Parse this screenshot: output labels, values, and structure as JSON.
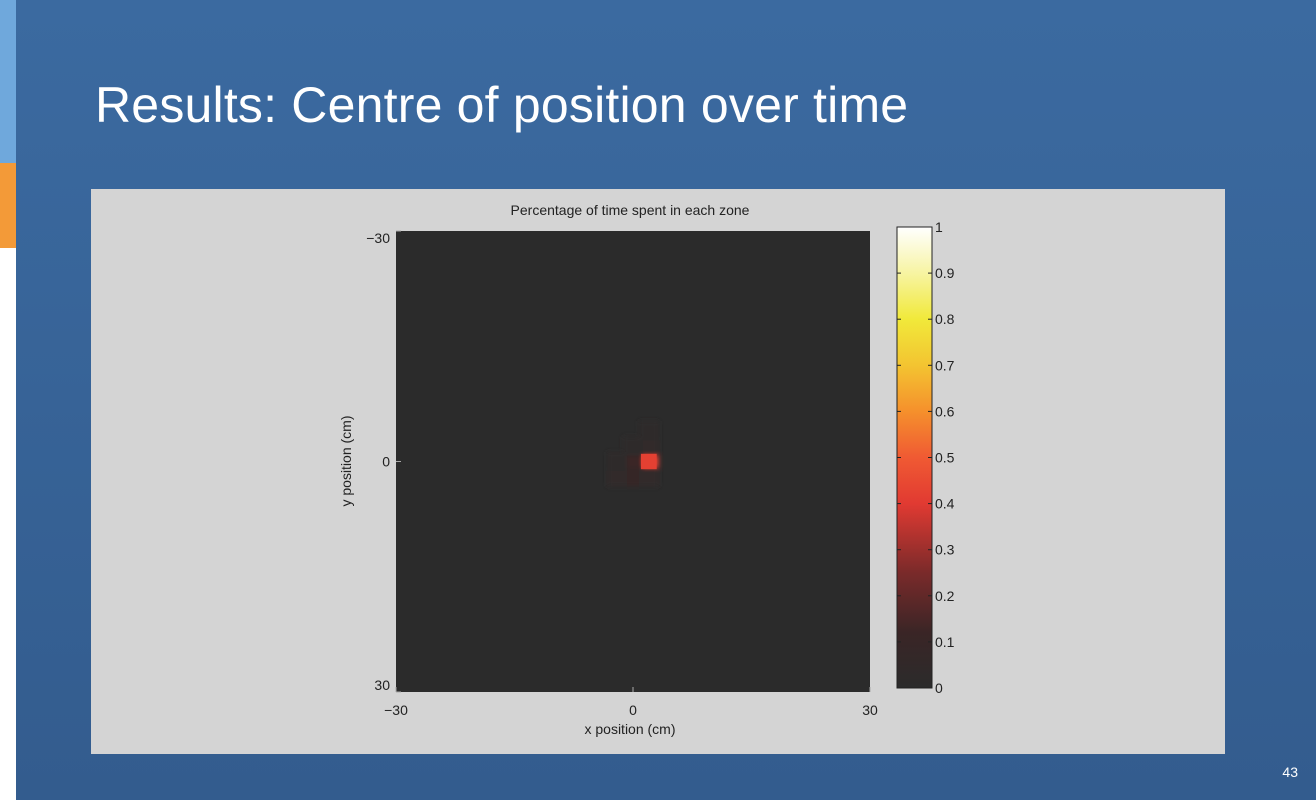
{
  "slide": {
    "title": "Results: Centre of position over time",
    "page_number": "43"
  },
  "colors": {
    "background": "#3b6aa0",
    "accent_blue": "#6fa8dc",
    "accent_orange": "#f39a38",
    "figure_background": "#d4d4d4",
    "plot_background": "#2b2b2b"
  },
  "chart_data": {
    "type": "heatmap",
    "title": "Percentage of time spent in each zone",
    "xlabel": "x position (cm)",
    "ylabel": "y position (cm)",
    "xlim": [
      -30,
      30
    ],
    "ylim": [
      -30,
      30
    ],
    "y_reversed": true,
    "x_ticks": [
      "−30",
      "0",
      "30"
    ],
    "y_ticks": [
      "−30",
      "0",
      "30"
    ],
    "colorbar": {
      "range": [
        0,
        1
      ],
      "ticks": [
        "0",
        "0.1",
        "0.2",
        "0.3",
        "0.4",
        "0.5",
        "0.6",
        "0.7",
        "0.8",
        "0.9",
        "1"
      ],
      "colormap": "hot"
    },
    "cell_size_cm": 2,
    "cells": [
      {
        "x": 2,
        "y": 0,
        "value": 0.42
      },
      {
        "x": 0,
        "y": 0,
        "value": 0.12
      },
      {
        "x": 0,
        "y": 2,
        "value": 0.09
      },
      {
        "x": -2,
        "y": 2,
        "value": 0.05
      },
      {
        "x": 2,
        "y": 2,
        "value": 0.04
      },
      {
        "x": 2,
        "y": -2,
        "value": 0.04
      },
      {
        "x": 2,
        "y": -4,
        "value": 0.02
      },
      {
        "x": 0,
        "y": -2,
        "value": 0.03
      },
      {
        "x": -2,
        "y": 0,
        "value": 0.03
      }
    ]
  }
}
